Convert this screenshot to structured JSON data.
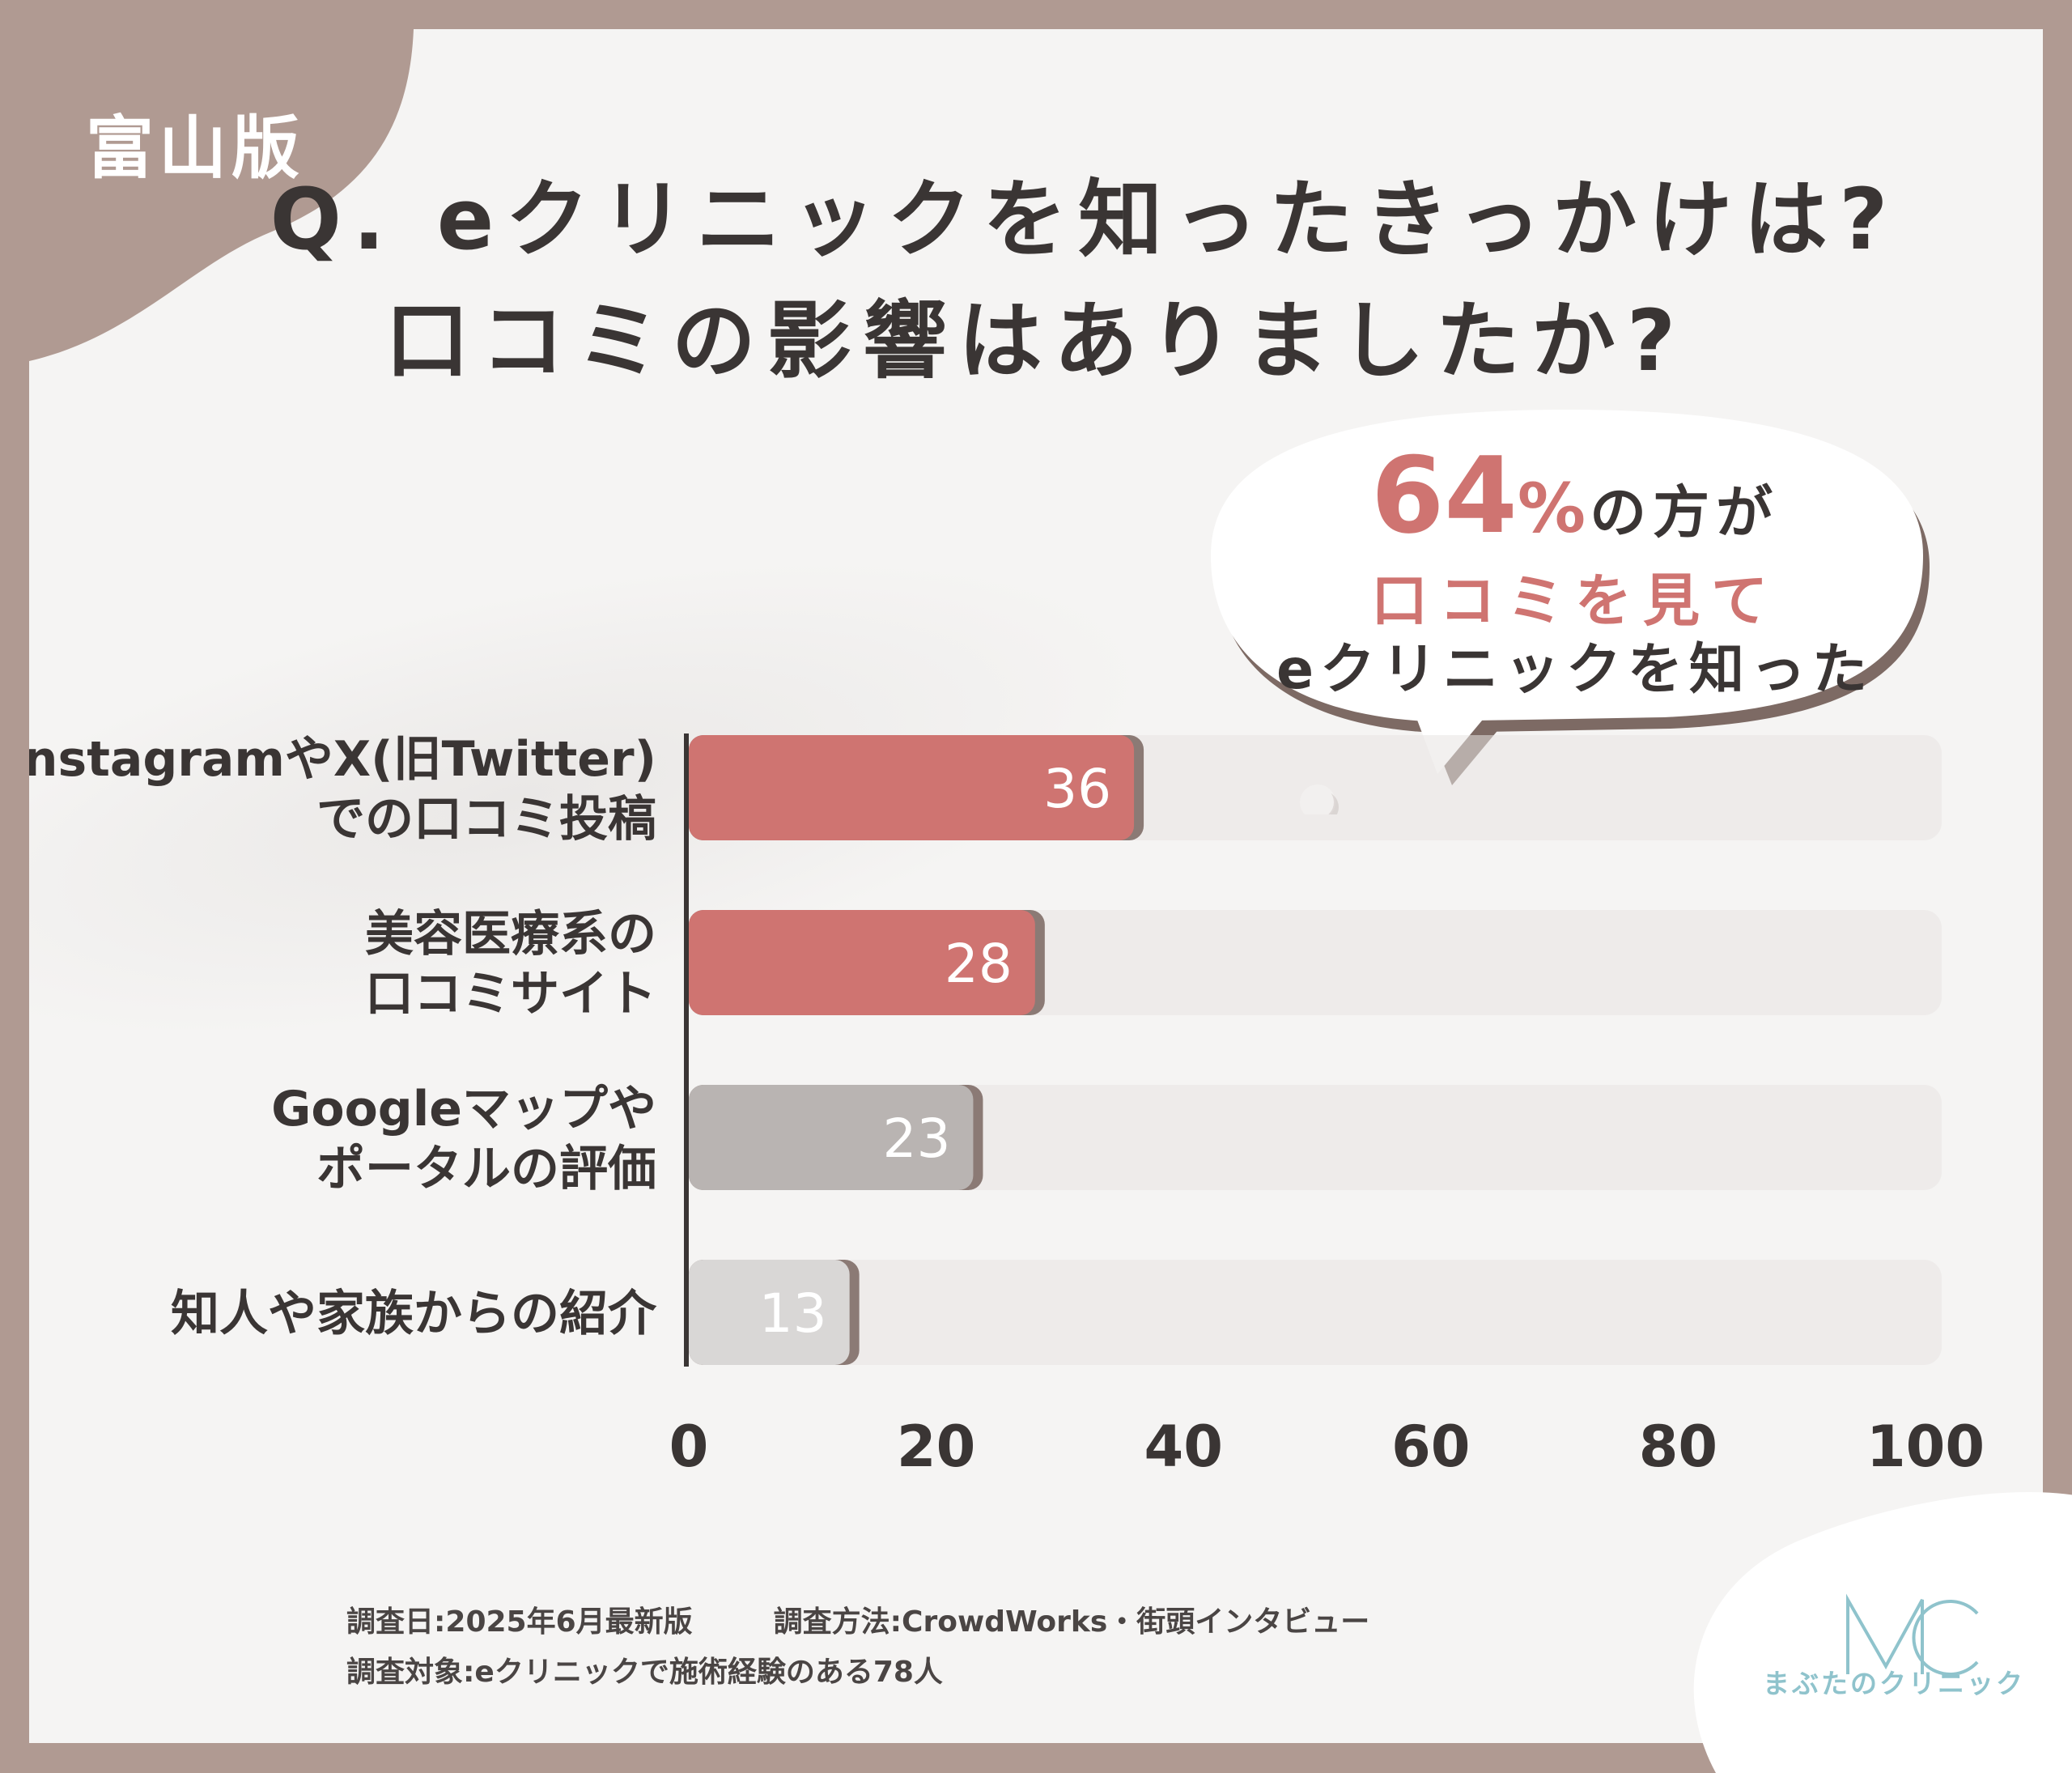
{
  "region_label": "富山版",
  "question": {
    "line1": "Q. eクリニックを知ったきっかけは?",
    "line2": "口コミの影響はありましたか?"
  },
  "bubble": {
    "percent_value": "64",
    "percent_sign": "%",
    "line1_rest": "の方が",
    "line2": "口コミを見て",
    "line3": "eクリニックを知った"
  },
  "chart_data": {
    "type": "bar",
    "orientation": "horizontal",
    "categories": [
      [
        "InstagramやX(旧Twitter)",
        "での口コミ投稿"
      ],
      [
        "美容医療系の",
        "口コミサイト"
      ],
      [
        "Googleマップや",
        "ポータルの評価"
      ],
      [
        "知人や家族からの紹介"
      ]
    ],
    "values": [
      36,
      28,
      23,
      13
    ],
    "value_labels": [
      "36",
      "28",
      "23",
      "13"
    ],
    "bar_colors": [
      "#cf7471",
      "#cf7471",
      "#b9b4b2",
      "#d9d7d6"
    ],
    "xlim": [
      0,
      100
    ],
    "xticks": [
      "0",
      "20",
      "40",
      "60",
      "80",
      "100"
    ],
    "title": "",
    "xlabel": "",
    "ylabel": ""
  },
  "colors": {
    "frame": "#b09a92",
    "accent": "#cf7471",
    "text": "#3a3534",
    "logo": "#8fc3cc"
  },
  "footer": {
    "date": "調査日:2025年6月最新版",
    "method": "調査方法:CrowdWorks・街頭インタビュー",
    "target": "調査対象:eクリニックで施術経験のある78人"
  },
  "logo": {
    "mark": "MC",
    "name": "まぶたのクリニック"
  }
}
